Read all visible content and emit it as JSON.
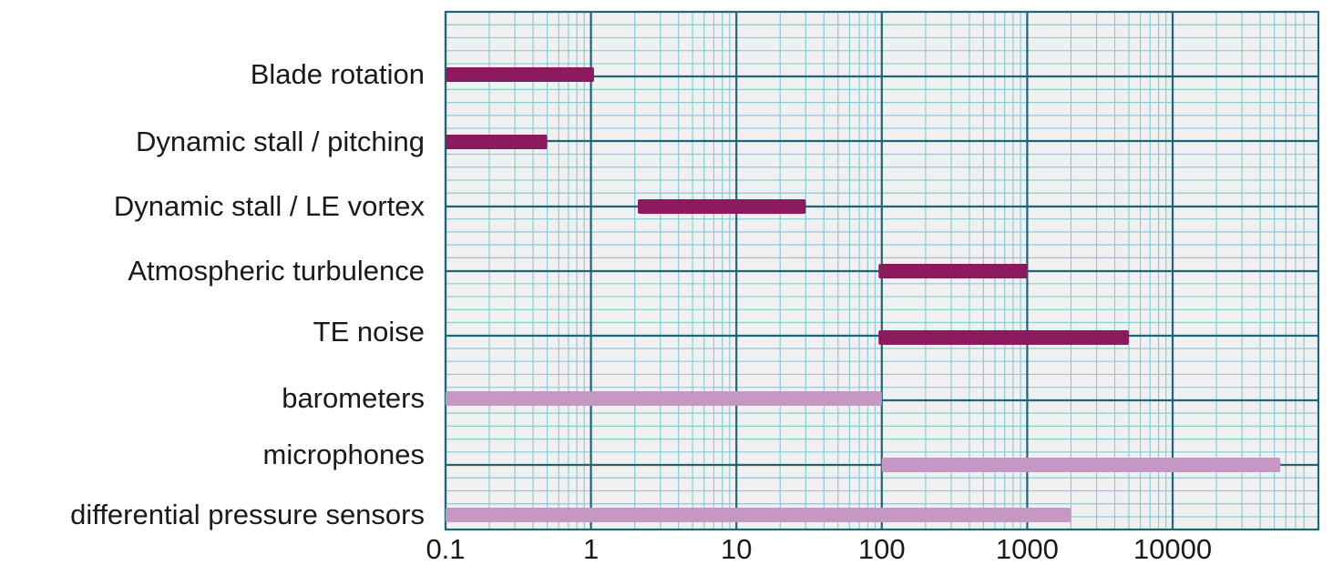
{
  "chart_data": {
    "type": "bar",
    "orientation": "horizontal-range",
    "x_scale": "log",
    "xlim": [
      0.1,
      80000
    ],
    "x_ticks": [
      0.1,
      1,
      10,
      100,
      1000,
      10000
    ],
    "x_tick_labels": [
      "0.1",
      "1",
      "10",
      "100",
      "1000",
      "10000"
    ],
    "grid": "major and minor (log)",
    "title": "",
    "xlabel": "",
    "ylabel": "",
    "colors": {
      "phenomenon": "#8b1a5e",
      "sensor": "#c497c4",
      "grid_major": "#1f6478",
      "grid_minor": "#8ccad6",
      "plot_bg": "#f0f0f0"
    },
    "categories": [
      {
        "label": "Blade rotation",
        "start": 0.1,
        "end": 1.05,
        "group": "phenomenon"
      },
      {
        "label": "Dynamic stall / pitching",
        "start": 0.1,
        "end": 0.5,
        "group": "phenomenon"
      },
      {
        "label": "Dynamic stall / LE vortex",
        "start": 2.1,
        "end": 30,
        "group": "phenomenon"
      },
      {
        "label": "Atmospheric turbulence",
        "start": 95,
        "end": 1000,
        "group": "phenomenon"
      },
      {
        "label": "TE noise",
        "start": 95,
        "end": 5000,
        "group": "phenomenon"
      },
      {
        "label": "barometers",
        "start": 0.1,
        "end": 100,
        "group": "sensor"
      },
      {
        "label": "microphones",
        "start": 100,
        "end": 55000,
        "group": "sensor"
      },
      {
        "label": "differential pressure sensors",
        "start": 0.1,
        "end": 2000,
        "group": "sensor"
      }
    ]
  }
}
